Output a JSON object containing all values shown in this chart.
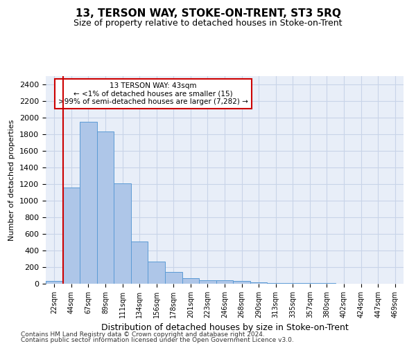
{
  "title": "13, TERSON WAY, STOKE-ON-TRENT, ST3 5RQ",
  "subtitle": "Size of property relative to detached houses in Stoke-on-Trent",
  "xlabel": "Distribution of detached houses by size in Stoke-on-Trent",
  "ylabel": "Number of detached properties",
  "categories": [
    "22sqm",
    "44sqm",
    "67sqm",
    "89sqm",
    "111sqm",
    "134sqm",
    "156sqm",
    "178sqm",
    "201sqm",
    "223sqm",
    "246sqm",
    "268sqm",
    "290sqm",
    "313sqm",
    "335sqm",
    "357sqm",
    "380sqm",
    "402sqm",
    "424sqm",
    "447sqm",
    "469sqm"
  ],
  "values": [
    30,
    1160,
    1950,
    1830,
    1210,
    510,
    265,
    145,
    70,
    40,
    40,
    30,
    15,
    10,
    5,
    5,
    5,
    2,
    2,
    2,
    2
  ],
  "bar_color": "#aec6e8",
  "bar_edge_color": "#5b9bd5",
  "annotation_text": "13 TERSON WAY: 43sqm\n← <1% of detached houses are smaller (15)\n>99% of semi-detached houses are larger (7,282) →",
  "annotation_box_color": "#ffffff",
  "annotation_box_edge_color": "#cc0000",
  "vline_color": "#cc0000",
  "vline_x": 0.5,
  "ylim": [
    0,
    2500
  ],
  "yticks": [
    0,
    200,
    400,
    600,
    800,
    1000,
    1200,
    1400,
    1600,
    1800,
    2000,
    2200,
    2400
  ],
  "footer_line1": "Contains HM Land Registry data © Crown copyright and database right 2024.",
  "footer_line2": "Contains public sector information licensed under the Open Government Licence v3.0.",
  "background_color": "#ffffff",
  "axes_bg_color": "#e8eef8",
  "grid_color": "#c8d4e8",
  "title_fontsize": 11,
  "subtitle_fontsize": 9,
  "xlabel_fontsize": 9,
  "ylabel_fontsize": 8,
  "tick_fontsize": 8,
  "xtick_fontsize": 7,
  "footer_fontsize": 6.5
}
